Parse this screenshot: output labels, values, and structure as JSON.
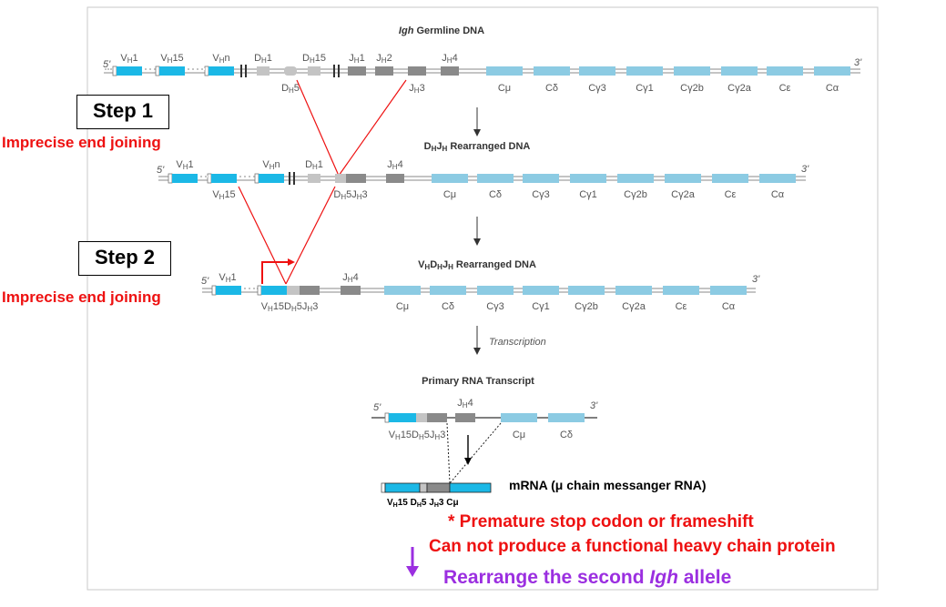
{
  "steps": {
    "step1_label": "Step 1",
    "step1_note": "Imprecise end joining",
    "step2_label": "Step 2",
    "step2_note": "Imprecise end joining"
  },
  "panel1": {
    "title": "Igh Germline DNA",
    "end5": "5'",
    "end3": "3'",
    "genes": [
      "VH1",
      "VH15",
      "VHn",
      "DH1",
      "DH15",
      "DH5",
      "JH1",
      "JH2",
      "JH3",
      "JH4",
      "Cμ",
      "Cδ",
      "Cγ3",
      "Cγ1",
      "Cγ2b",
      "Cγ2a",
      "Cε",
      "Cα"
    ]
  },
  "panel2": {
    "title": "DHJH Rearranged DNA",
    "end5": "5'",
    "end3": "3'",
    "genes": [
      "VH1",
      "VH15",
      "VHn",
      "DH1",
      "DH5JH3",
      "JH4",
      "Cμ",
      "Cδ",
      "Cγ3",
      "Cγ1",
      "Cγ2b",
      "Cγ2a",
      "Cε",
      "Cα"
    ]
  },
  "panel3": {
    "title": "VHDHJH Rearranged DNA",
    "end5": "5'",
    "end3": "3'",
    "genes": [
      "VH1",
      "VH15DH5JH3",
      "JH4",
      "Cμ",
      "Cδ",
      "Cγ3",
      "Cγ1",
      "Cγ2b",
      "Cγ2a",
      "Cε",
      "Cα"
    ]
  },
  "transcription_label": "Transcription",
  "panel4": {
    "title": "Primary RNA Transcript",
    "end5": "5'",
    "end3": "3'",
    "genes": [
      "JH4",
      "VH15DH5JH3",
      "Cμ",
      "Cδ"
    ]
  },
  "mrna": {
    "label": "mRNA (μ chain messanger RNA)",
    "segments": "VH15 DH5 JH3 Cμ"
  },
  "notes": {
    "stop": "* Premature stop codon or frameshift",
    "nonfunctional": "Can not produce a functional heavy chain protein",
    "rearrange": "Rearrange the second Igh allele"
  },
  "colors": {
    "v_segment": "#1bb8e6",
    "c_segment": "#8ccbe3",
    "d_segment": "#c4c4c4",
    "j_segment": "#8a8a8a",
    "red": "#ee1111",
    "purple": "#9b2fe0"
  }
}
